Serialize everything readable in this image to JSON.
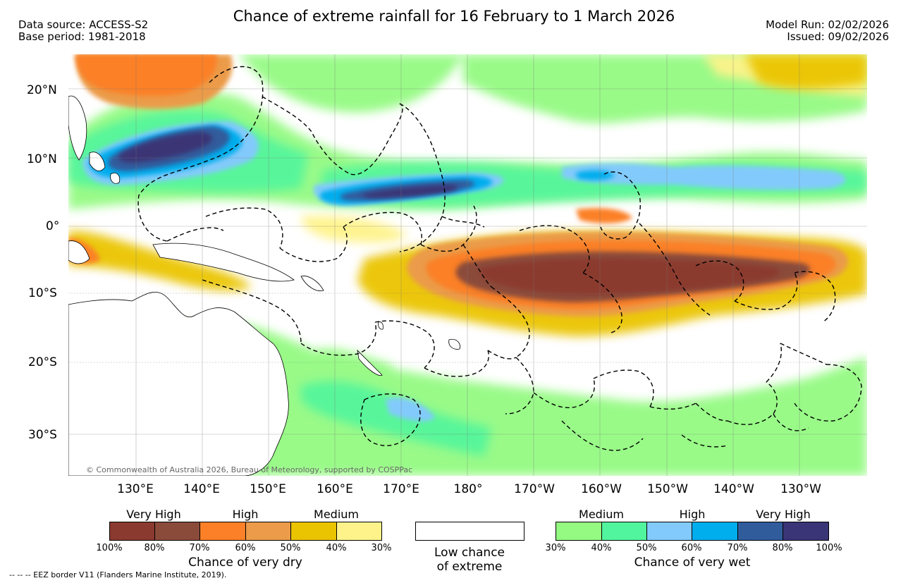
{
  "header": {
    "title": "Chance of extreme rainfall for 16 February to 1 March 2026",
    "data_source": "Data source: ACCESS-S2",
    "base_period": "Base period: 1981-2018",
    "model_run": "Model Run: 02/02/2026",
    "issued": "Issued: 09/02/2026"
  },
  "map": {
    "lat_labels": [
      "20°N",
      "10°N",
      "0°",
      "10°S",
      "20°S",
      "30°S"
    ],
    "lon_labels": [
      "130°E",
      "140°E",
      "150°E",
      "160°E",
      "170°E",
      "180°",
      "170°W",
      "160°W",
      "150°W",
      "140°W",
      "130°W"
    ],
    "copyright": "© Commonwealth of Australia 2026, Bureau of Meteorology, supported by COSPPac",
    "ocean_color": "#ffffff",
    "land_color": "#ffffff",
    "eez_line_color": "#000000"
  },
  "legend": {
    "dry": {
      "categories": [
        "Very High",
        "High",
        "Medium"
      ],
      "colors": [
        "#8b3a2f",
        "#8b4b3b",
        "#fb8027",
        "#eb9b4a",
        "#eac400",
        "#fef38a"
      ],
      "ticks": [
        "100%",
        "80%",
        "70%",
        "60%",
        "50%",
        "40%",
        "30%"
      ],
      "title": "Chance of very dry"
    },
    "low": {
      "line1": "Low chance",
      "line2": "of extreme",
      "color": "#ffffff"
    },
    "wet": {
      "categories": [
        "Medium",
        "High",
        "Very High"
      ],
      "colors": [
        "#94fa82",
        "#51f59d",
        "#82cafb",
        "#00aded",
        "#305c9c",
        "#3a3576"
      ],
      "ticks": [
        "30%",
        "40%",
        "50%",
        "60%",
        "70%",
        "80%",
        "100%"
      ],
      "title": "Chance of very wet"
    }
  },
  "footer": {
    "eez_note": "-- -- -- EEZ border V11 (Flanders Marine Institute, 2019)."
  }
}
